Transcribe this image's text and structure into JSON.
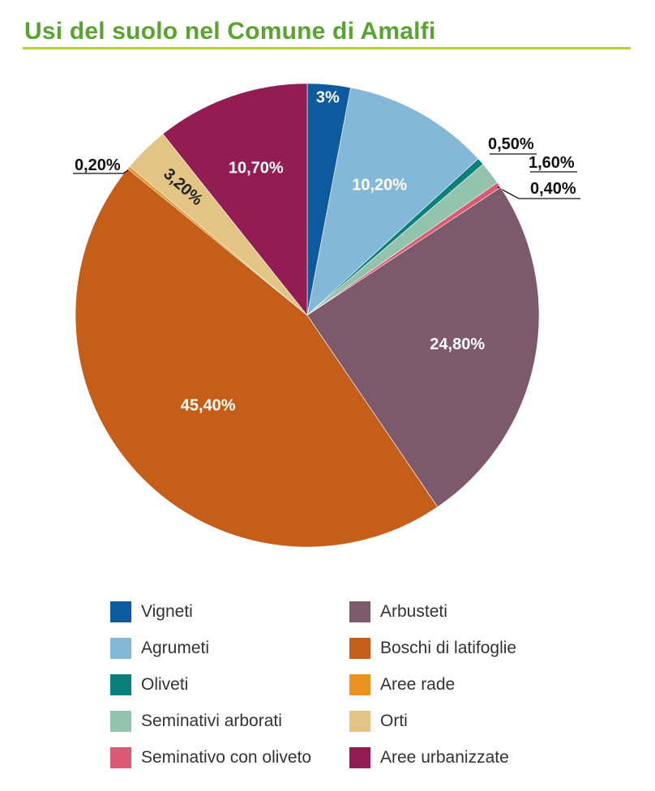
{
  "header": {
    "title": "Usi del suolo nel Comune di Amalfi"
  },
  "chart_data": {
    "type": "pie",
    "title": "Usi del suolo nel Comune di Amalfi",
    "slices": [
      {
        "name": "Vigneti",
        "value": 3.0,
        "label": "3%",
        "color": "#0e5a9e"
      },
      {
        "name": "Agrumeti",
        "value": 10.2,
        "label": "10,20%",
        "color": "#84b8d8"
      },
      {
        "name": "Oliveti",
        "value": 0.5,
        "label": "0,50%",
        "color": "#0a7f7c"
      },
      {
        "name": "Seminativi arborati",
        "value": 1.6,
        "label": "1,60%",
        "color": "#93c3ad"
      },
      {
        "name": "Seminativo con oliveto",
        "value": 0.4,
        "label": "0,40%",
        "color": "#d85a73"
      },
      {
        "name": "Arbusteti",
        "value": 24.8,
        "label": "24,80%",
        "color": "#7e596b"
      },
      {
        "name": "Boschi di latifoglie",
        "value": 45.4,
        "label": "45,40%",
        "color": "#c45e19"
      },
      {
        "name": "Aree rade",
        "value": 0.2,
        "label": "0,20%",
        "color": "#e9921f"
      },
      {
        "name": "Orti",
        "value": 3.2,
        "label": "3,20%",
        "color": "#e2c585"
      },
      {
        "name": "Aree urbanizzate",
        "value": 10.7,
        "label": "10,70%",
        "color": "#931c53"
      }
    ],
    "legend_placement": "bottom"
  }
}
